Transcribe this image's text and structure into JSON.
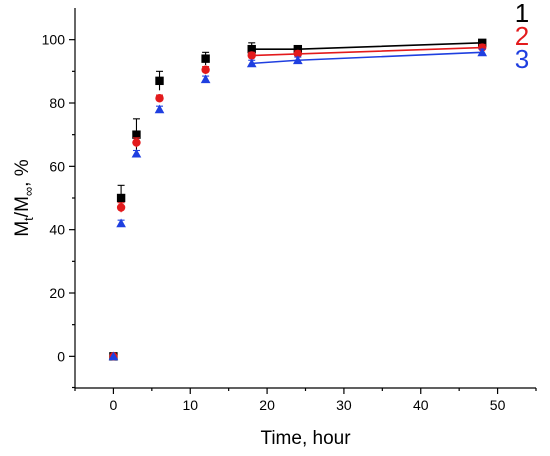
{
  "chart_data": {
    "type": "scatter",
    "title": "",
    "xlabel": "Time, hour",
    "ylabel": {
      "main": "M",
      "sub1": "t",
      "mid": "/M",
      "sub2": "∞",
      "suffix": ", %"
    },
    "xlim": [
      -5,
      55
    ],
    "ylim": [
      -10,
      110
    ],
    "xticks": [
      "0",
      "10",
      "20",
      "30",
      "40",
      "50"
    ],
    "yticks": [
      "0",
      "20",
      "40",
      "60",
      "80",
      "100"
    ],
    "x": [
      0,
      1,
      3,
      6,
      12,
      18,
      24,
      48
    ],
    "series": [
      {
        "name": "1",
        "color": "#000000",
        "marker": "square",
        "values": [
          0,
          50,
          70,
          87,
          94,
          97,
          97,
          99
        ],
        "errors": [
          0,
          4,
          5,
          3,
          2,
          2,
          1,
          1
        ]
      },
      {
        "name": "2",
        "color": "#e31a1c",
        "marker": "circle",
        "values": [
          0,
          47,
          67.5,
          81.5,
          90.5,
          95,
          95.5,
          97.5
        ],
        "errors": [
          0,
          1.5,
          1.5,
          1,
          1,
          1,
          1,
          1
        ]
      },
      {
        "name": "3",
        "color": "#1f3fe0",
        "marker": "triangle",
        "values": [
          0,
          42,
          64,
          78,
          87.5,
          92.5,
          93.5,
          96
        ],
        "errors": [
          0,
          1,
          1,
          1,
          1,
          1,
          1,
          1
        ]
      }
    ],
    "fit_from_x": 18,
    "grid": false,
    "legend": "top-right"
  }
}
